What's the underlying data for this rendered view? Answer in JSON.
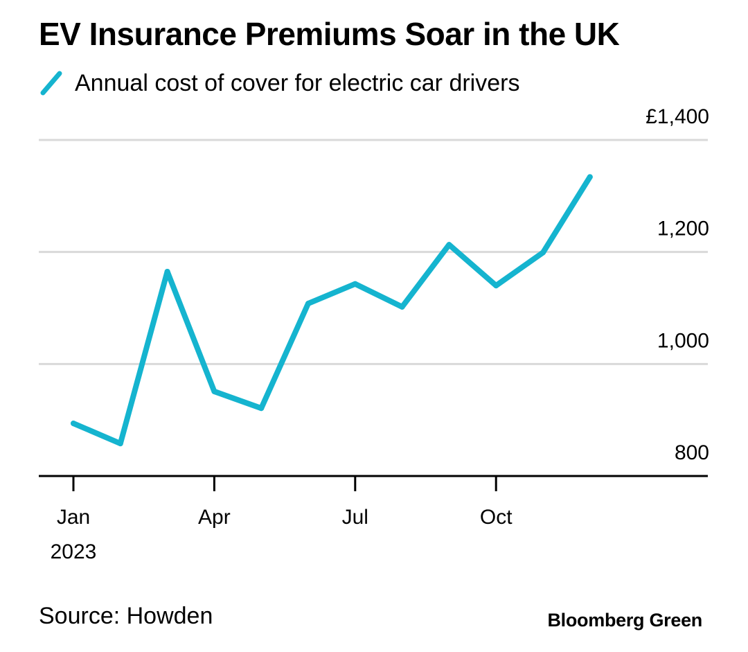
{
  "title": "EV Insurance Premiums Soar in the UK",
  "legend": {
    "label": "Annual cost of cover for electric car drivers"
  },
  "source": "Source: Howden",
  "brand": "Bloomberg Green",
  "colors": {
    "line": "#15b4cf",
    "grid": "#d9d9d9",
    "axis": "#000000",
    "text": "#000000"
  },
  "chart_data": {
    "type": "line",
    "title": "EV Insurance Premiums Soar in the UK",
    "xlabel": "",
    "ylabel": "",
    "ylim": [
      800,
      1400
    ],
    "yticks": [
      800,
      1000,
      1200,
      1400
    ],
    "ytick_labels": [
      "800",
      "1,000",
      "1,200",
      "£1,400"
    ],
    "xticks": [
      {
        "month": 1,
        "label": "Jan",
        "sublabel": "2023"
      },
      {
        "month": 4,
        "label": "Apr",
        "sublabel": ""
      },
      {
        "month": 7,
        "label": "Jul",
        "sublabel": ""
      },
      {
        "month": 10,
        "label": "Oct",
        "sublabel": ""
      }
    ],
    "grid": true,
    "legend_position": "top-left",
    "series": [
      {
        "name": "Annual cost of cover for electric car drivers",
        "x": [
          "Jan 2023",
          "Feb 2023",
          "Mar 2023",
          "Apr 2023",
          "May 2023",
          "Jun 2023",
          "Jul 2023",
          "Aug 2023",
          "Sep 2023",
          "Oct 2023",
          "Nov 2023",
          "Dec 2023"
        ],
        "values": [
          894,
          858,
          1165,
          951,
          921,
          1108,
          1143,
          1102,
          1213,
          1140,
          1199,
          1334
        ]
      }
    ]
  }
}
